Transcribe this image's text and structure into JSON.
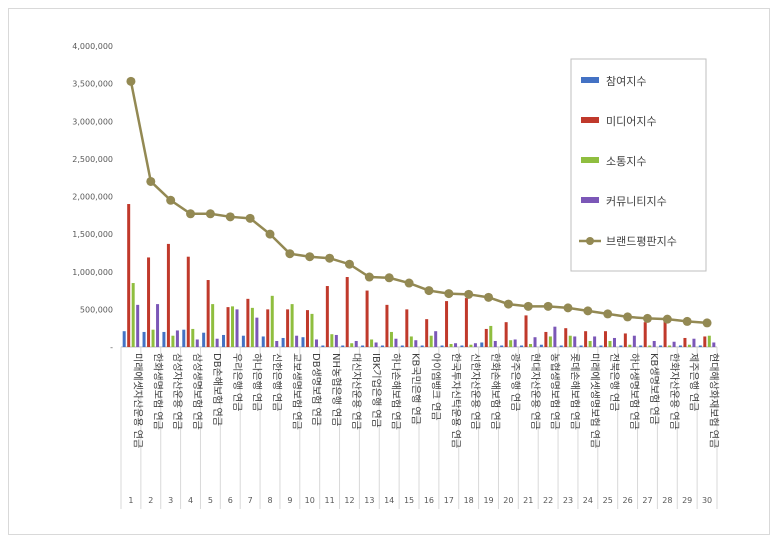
{
  "chart_data": {
    "type": "bar",
    "title": "",
    "xlabel": "",
    "ylabel": "",
    "ylim": [
      0,
      4000000
    ],
    "yticks": [
      "-",
      "500,000",
      "1,000,000",
      "1,500,000",
      "2,000,000",
      "2,500,000",
      "3,000,000",
      "3,500,000",
      "4,000,000"
    ],
    "grid": false,
    "legend_position": "top-right",
    "categories": [
      {
        "rank": "1",
        "label": "미래에셋자산운용 연금"
      },
      {
        "rank": "2",
        "label": "한화생명보험 연금"
      },
      {
        "rank": "3",
        "label": "삼성자산운용 연금"
      },
      {
        "rank": "4",
        "label": "삼성생명보험 연금"
      },
      {
        "rank": "5",
        "label": "DB손해보험 연금"
      },
      {
        "rank": "6",
        "label": "우리은행 연금"
      },
      {
        "rank": "7",
        "label": "하나은행 연금"
      },
      {
        "rank": "8",
        "label": "신한은행 연금"
      },
      {
        "rank": "9",
        "label": "교보생명보험 연금"
      },
      {
        "rank": "10",
        "label": "DB생명보험 연금"
      },
      {
        "rank": "11",
        "label": "NH농협은행 연금"
      },
      {
        "rank": "12",
        "label": "대신자산운용 연금"
      },
      {
        "rank": "13",
        "label": "IBK기업은행 연금"
      },
      {
        "rank": "14",
        "label": "하나손해보험 연금"
      },
      {
        "rank": "15",
        "label": "KB국민은행 연금"
      },
      {
        "rank": "16",
        "label": "아이엠뱅크 연금"
      },
      {
        "rank": "17",
        "label": "한국투자신탁운용 연금"
      },
      {
        "rank": "18",
        "label": "신한자산운용 연금"
      },
      {
        "rank": "19",
        "label": "한화손해보험 연금"
      },
      {
        "rank": "20",
        "label": "광주은행 연금"
      },
      {
        "rank": "21",
        "label": "현대자산운용 연금"
      },
      {
        "rank": "22",
        "label": "농협생명보험 연금"
      },
      {
        "rank": "23",
        "label": "롯데손해보험 연금"
      },
      {
        "rank": "24",
        "label": "미래에셋생명보험 연금"
      },
      {
        "rank": "25",
        "label": "전북은행 연금"
      },
      {
        "rank": "26",
        "label": "하나생명보험 연금"
      },
      {
        "rank": "27",
        "label": "KB생명보험 연금"
      },
      {
        "rank": "28",
        "label": "한화자산운용 연금"
      },
      {
        "rank": "29",
        "label": "제주은행 연금"
      },
      {
        "rank": "30",
        "label": "현대해상화재보험 연금"
      }
    ],
    "series": [
      {
        "name": "참여지수",
        "type": "bar",
        "color": "#4472c4",
        "values": [
          210000,
          200000,
          200000,
          230000,
          190000,
          160000,
          150000,
          140000,
          120000,
          130000,
          20000,
          20000,
          20000,
          20000,
          20000,
          20000,
          20000,
          20000,
          60000,
          20000,
          20000,
          30000,
          20000,
          20000,
          20000,
          20000,
          20000,
          20000,
          20000,
          20000
        ]
      },
      {
        "name": "미디어지수",
        "type": "bar",
        "color": "#c0392b",
        "values": [
          1900000,
          1190000,
          1370000,
          1200000,
          890000,
          530000,
          640000,
          500000,
          500000,
          490000,
          810000,
          930000,
          750000,
          560000,
          500000,
          370000,
          610000,
          650000,
          240000,
          330000,
          420000,
          200000,
          250000,
          210000,
          210000,
          180000,
          330000,
          340000,
          120000,
          140000
        ]
      },
      {
        "name": "소통지수",
        "type": "bar",
        "color": "#8fbe3f",
        "values": [
          850000,
          230000,
          150000,
          240000,
          570000,
          540000,
          520000,
          680000,
          570000,
          440000,
          170000,
          50000,
          100000,
          200000,
          140000,
          150000,
          40000,
          30000,
          280000,
          90000,
          40000,
          140000,
          150000,
          80000,
          80000,
          30000,
          20000,
          20000,
          30000,
          150000
        ]
      },
      {
        "name": "커뮤니티지수",
        "type": "bar",
        "color": "#7b57b7",
        "values": [
          560000,
          570000,
          220000,
          100000,
          110000,
          500000,
          390000,
          80000,
          150000,
          100000,
          160000,
          80000,
          60000,
          110000,
          90000,
          210000,
          50000,
          50000,
          80000,
          100000,
          130000,
          270000,
          140000,
          140000,
          120000,
          150000,
          80000,
          70000,
          110000,
          60000
        ]
      },
      {
        "name": "브랜드평판지수",
        "type": "line",
        "color": "#938953",
        "values": [
          3530000,
          2200000,
          1950000,
          1770000,
          1770000,
          1730000,
          1710000,
          1500000,
          1240000,
          1200000,
          1180000,
          1100000,
          930000,
          920000,
          850000,
          750000,
          710000,
          700000,
          660000,
          570000,
          540000,
          540000,
          520000,
          480000,
          440000,
          400000,
          380000,
          370000,
          340000,
          320000
        ]
      }
    ]
  }
}
